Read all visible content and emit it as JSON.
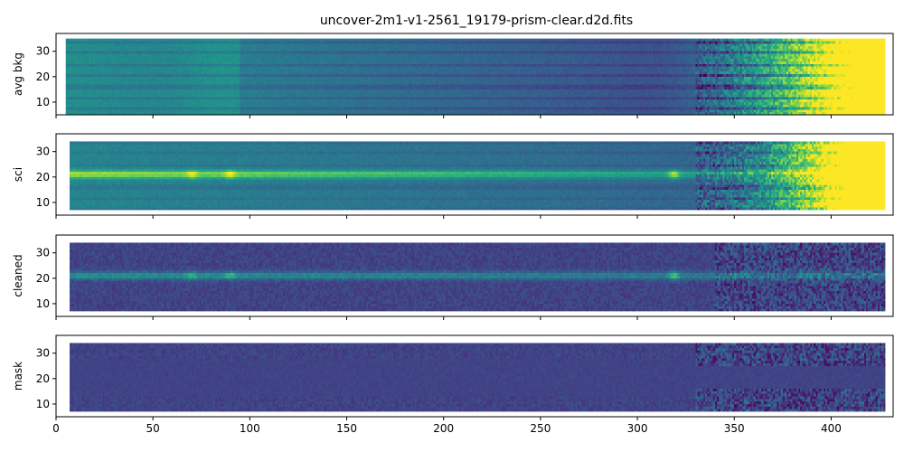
{
  "title": "uncover-2m1-v1-2561_19179-prism-clear.d2d.fits",
  "colormap": "viridis",
  "colors": {
    "viridis_stops": [
      "#440154",
      "#482878",
      "#3e4a89",
      "#31688e",
      "#26828e",
      "#1f9e89",
      "#35b779",
      "#6ece58",
      "#b5de2b",
      "#fde725"
    ],
    "axis": "#000000",
    "background": "#ffffff"
  },
  "x_axis": {
    "range": [
      0,
      432
    ],
    "ticks": [
      0,
      50,
      100,
      150,
      200,
      250,
      300,
      350,
      400
    ],
    "tick_labels": [
      "0",
      "50",
      "100",
      "150",
      "200",
      "250",
      "300",
      "350",
      "400"
    ]
  },
  "chart_data": [
    {
      "type": "heatmap",
      "ylabel": "avg bkg",
      "xlim": [
        0,
        432
      ],
      "ylim": [
        5,
        37
      ],
      "yticks": [
        10,
        20,
        30
      ],
      "ytick_labels": [
        "10",
        "20",
        "30"
      ],
      "data_x_range": [
        5,
        428
      ],
      "data_y_range": [
        5,
        35
      ],
      "trace_center_y": null,
      "description_of_values": "smooth background, brightening toward long wavelengths (saturated above x≈380), with horizontal stripes"
    },
    {
      "type": "heatmap",
      "ylabel": "sci",
      "xlim": [
        0,
        432
      ],
      "ylim": [
        5,
        37
      ],
      "yticks": [
        10,
        20,
        30
      ],
      "ytick_labels": [
        "10",
        "20",
        "30"
      ],
      "data_x_range": [
        7,
        428
      ],
      "data_y_range": [
        7,
        34
      ],
      "trace_center_y": 21,
      "bright_spots_x": [
        70,
        90,
        319
      ],
      "description_of_values": "spectral trace at y≈21 on background that brightens to saturation at x>360"
    },
    {
      "type": "heatmap",
      "ylabel": "cleaned",
      "xlim": [
        0,
        432
      ],
      "ylim": [
        5,
        37
      ],
      "yticks": [
        10,
        20,
        30
      ],
      "ytick_labels": [
        "10",
        "20",
        "30"
      ],
      "data_x_range": [
        7,
        428
      ],
      "data_y_range": [
        7,
        34
      ],
      "trace_center_y": 21,
      "bright_spots_x": [
        70,
        90,
        319
      ],
      "description_of_values": "background-subtracted frame with trace at y≈21"
    },
    {
      "type": "heatmap",
      "ylabel": "mask",
      "xlim": [
        0,
        432
      ],
      "ylim": [
        5,
        37
      ],
      "yticks": [
        10,
        20,
        30
      ],
      "ytick_labels": [
        "10",
        "20",
        "30"
      ],
      "data_x_range": [
        7,
        428
      ],
      "data_y_range": [
        7,
        34
      ],
      "trace_center_y": 21,
      "description_of_values": "mostly uniform low level with noisier edges toward long wavelengths"
    }
  ]
}
